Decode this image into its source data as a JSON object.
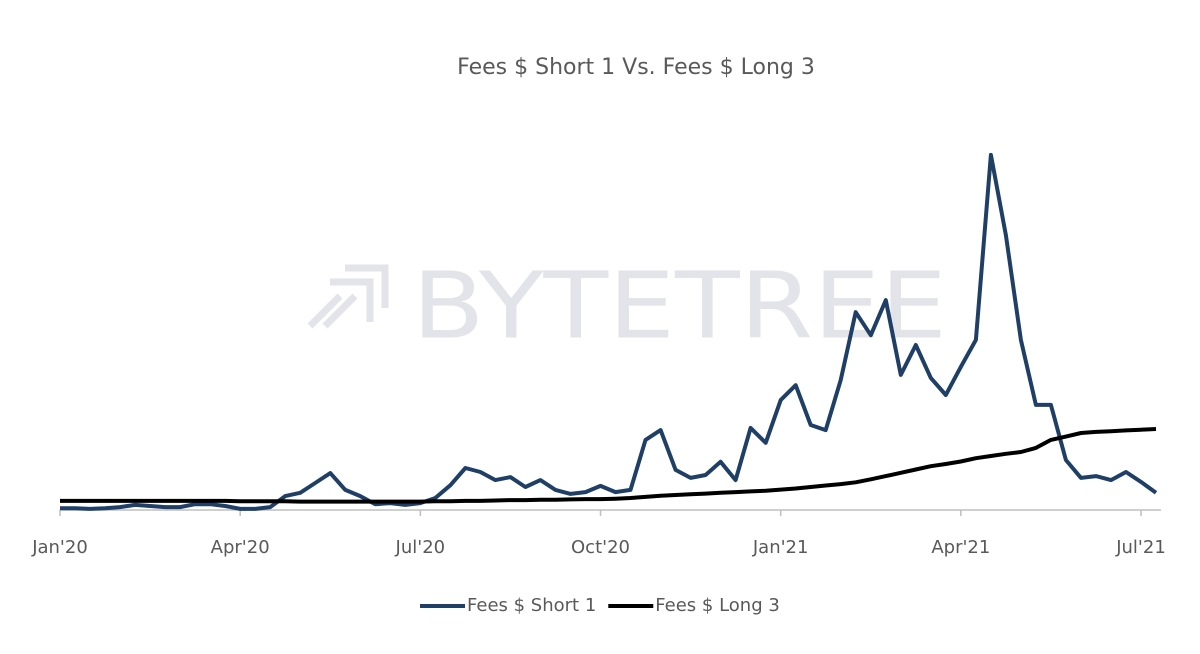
{
  "chart_data": {
    "type": "line",
    "title": "Fees $ Short 1 Vs. Fees $ Long 3",
    "watermark": "BYTETREE",
    "categories": [
      "Jan'20",
      null,
      null,
      null,
      null,
      null,
      null,
      null,
      null,
      null,
      null,
      null,
      "Apr'20",
      null,
      null,
      null,
      null,
      null,
      null,
      null,
      null,
      null,
      null,
      null,
      "Jul'20",
      null,
      null,
      null,
      null,
      null,
      null,
      null,
      null,
      null,
      null,
      null,
      "Oct'20",
      null,
      null,
      null,
      null,
      null,
      null,
      null,
      null,
      null,
      null,
      null,
      "Jan'21",
      null,
      null,
      null,
      null,
      null,
      null,
      null,
      null,
      null,
      null,
      null,
      "Apr'21",
      null,
      null,
      null,
      null,
      null,
      null,
      null,
      null,
      null,
      null,
      null,
      "Jul'21",
      null
    ],
    "ylim": [
      0,
      100
    ],
    "series": [
      {
        "name": "Fees $ Short 1",
        "color": "#1f3f66",
        "values": [
          0.5,
          0.5,
          0.3,
          0.5,
          0.8,
          1.4,
          1.1,
          0.8,
          0.8,
          1.6,
          1.6,
          1.1,
          0.3,
          0.3,
          0.8,
          3.8,
          4.7,
          7.4,
          10.1,
          5.5,
          3.8,
          1.6,
          1.9,
          1.4,
          1.9,
          3.3,
          6.8,
          11.5,
          10.4,
          8.2,
          9.0,
          6.3,
          8.2,
          5.5,
          4.4,
          4.9,
          6.6,
          4.9,
          5.5,
          19.2,
          21.9,
          11.0,
          8.8,
          9.6,
          13.2,
          8.2,
          22.5,
          18.4,
          30.1,
          34.2,
          23.3,
          21.9,
          35.6,
          54.2,
          47.9,
          57.5,
          37.0,
          45.2,
          36.2,
          31.5,
          39.2,
          46.6,
          97.3,
          75.3,
          46.6,
          28.8,
          28.8,
          13.7,
          8.8,
          9.3,
          8.2,
          10.4,
          7.7,
          4.7
        ]
      },
      {
        "name": "Fees $ Long 3",
        "color": "#000000",
        "values": [
          2.5,
          2.5,
          2.5,
          2.5,
          2.5,
          2.5,
          2.5,
          2.5,
          2.5,
          2.5,
          2.5,
          2.5,
          2.4,
          2.4,
          2.4,
          2.4,
          2.3,
          2.3,
          2.3,
          2.3,
          2.3,
          2.3,
          2.3,
          2.3,
          2.3,
          2.4,
          2.4,
          2.5,
          2.5,
          2.6,
          2.7,
          2.7,
          2.8,
          2.8,
          2.9,
          3.0,
          3.0,
          3.1,
          3.3,
          3.6,
          3.9,
          4.1,
          4.3,
          4.5,
          4.7,
          4.9,
          5.1,
          5.3,
          5.6,
          5.9,
          6.3,
          6.7,
          7.1,
          7.6,
          8.4,
          9.3,
          10.2,
          11.1,
          12.0,
          12.6,
          13.3,
          14.2,
          14.8,
          15.4,
          15.9,
          17.0,
          19.2,
          20.1,
          21.1,
          21.4,
          21.6,
          21.8,
          22.0,
          22.2
        ]
      }
    ]
  }
}
